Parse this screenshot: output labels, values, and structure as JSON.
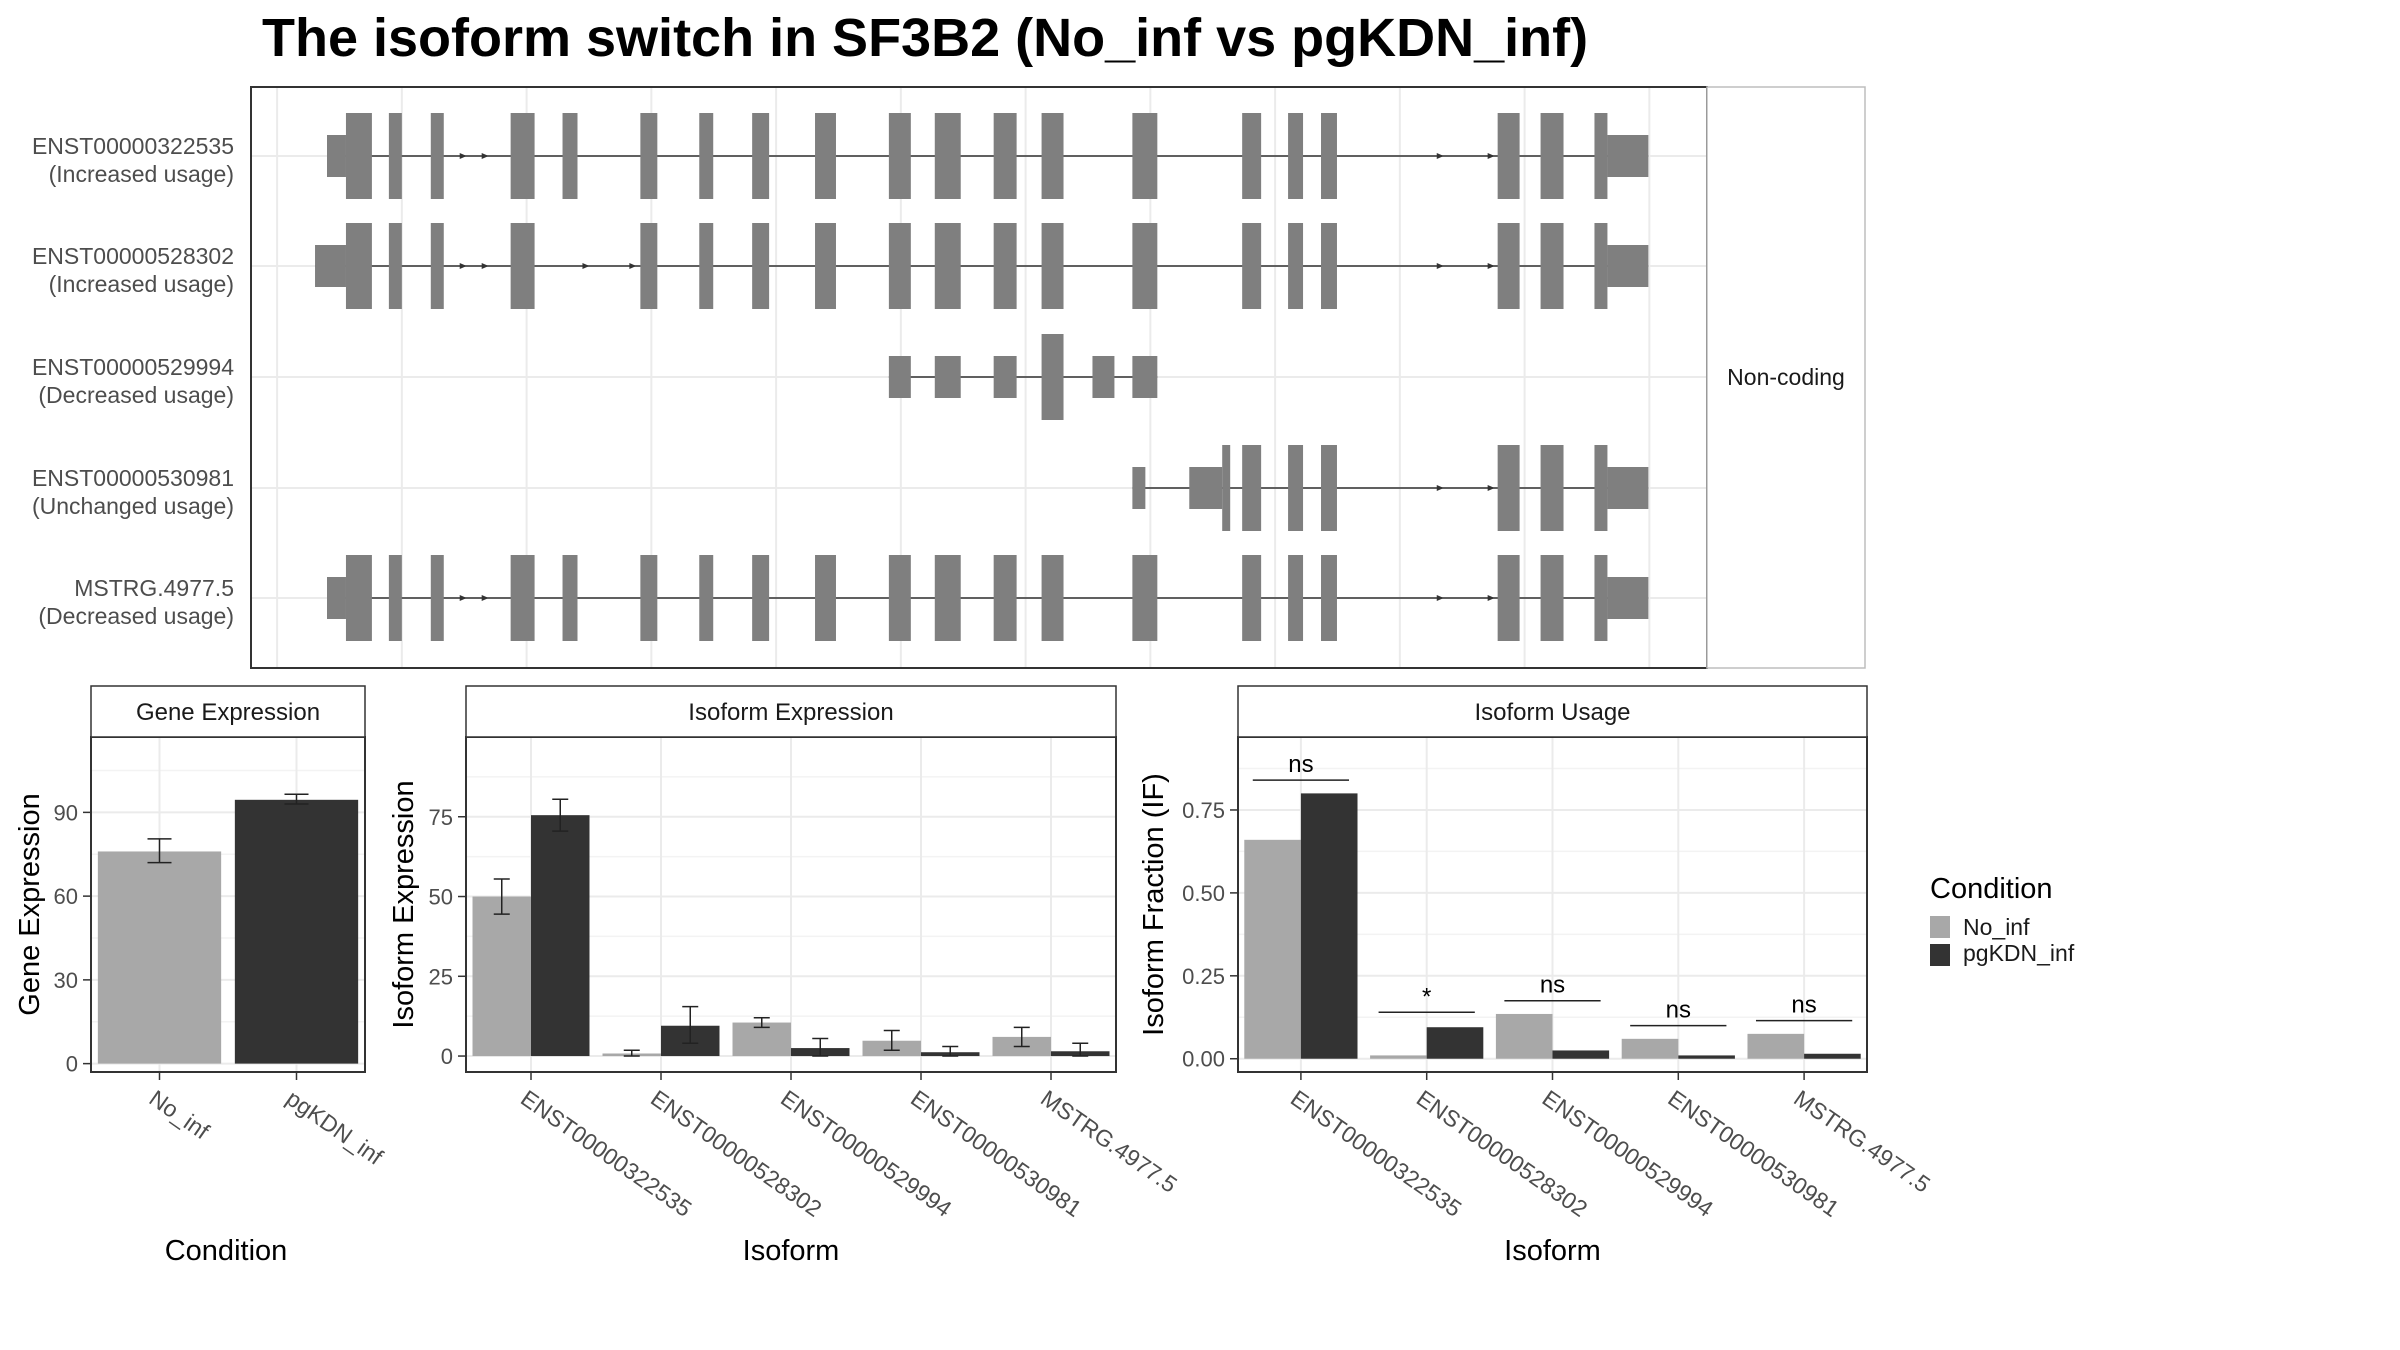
{
  "title": "The isoform switch in SF3B2 (No_inf vs pgKDN_inf)",
  "colors": {
    "no_inf": "#a8a8a8",
    "pgkdn_inf": "#333333",
    "exon": "#7f7f7f",
    "grid": "#ebebeb",
    "panel_border": "#333333",
    "strip_border": "#333333"
  },
  "legend": {
    "title": "Condition",
    "items": [
      {
        "label": "No_inf",
        "color": "#a8a8a8"
      },
      {
        "label": "pgKDN_inf",
        "color": "#333333"
      }
    ]
  },
  "structure": {
    "transcripts": [
      {
        "id": "ENST00000322535",
        "usage": "(Increased usage)",
        "utr5": [
          [
            0.0,
            1.9
          ]
        ],
        "exons": [
          [
            1.9,
            4.5
          ],
          [
            6.2,
            7.5
          ],
          [
            10.4,
            11.7
          ],
          [
            18.4,
            20.8
          ],
          [
            23.6,
            25.1
          ],
          [
            31.4,
            33.1
          ],
          [
            37.3,
            38.7
          ],
          [
            42.6,
            44.3
          ],
          [
            48.9,
            51.0
          ],
          [
            56.3,
            58.5
          ],
          [
            60.9,
            63.5
          ],
          [
            66.8,
            69.1
          ],
          [
            71.6,
            73.8
          ],
          [
            80.7,
            83.2
          ],
          [
            91.7,
            93.6
          ],
          [
            96.3,
            97.8
          ],
          [
            99.6,
            101.2
          ],
          [
            117.3,
            119.5
          ],
          [
            121.6,
            123.9
          ],
          [
            127.0,
            128.3
          ]
        ],
        "utr3": [
          [
            128.3,
            132.4
          ]
        ],
        "arrows": [
          14.0,
          16.2,
          111.9,
          117.0
        ]
      },
      {
        "id": "ENST00000528302",
        "usage": "(Increased usage)",
        "utr5": [
          [
            -1.2,
            1.9
          ]
        ],
        "exons": [
          [
            1.9,
            4.5
          ],
          [
            6.2,
            7.5
          ],
          [
            10.4,
            11.7
          ],
          [
            18.4,
            20.8
          ],
          [
            31.4,
            33.1
          ],
          [
            37.3,
            38.7
          ],
          [
            42.6,
            44.3
          ],
          [
            48.9,
            51.0
          ],
          [
            56.3,
            58.5
          ],
          [
            60.9,
            63.5
          ],
          [
            66.8,
            69.1
          ],
          [
            71.6,
            73.8
          ],
          [
            80.7,
            83.2
          ],
          [
            91.7,
            93.6
          ],
          [
            96.3,
            97.8
          ],
          [
            99.6,
            101.2
          ],
          [
            117.3,
            119.5
          ],
          [
            121.6,
            123.9
          ],
          [
            127.0,
            128.3
          ]
        ],
        "utr3": [
          [
            128.3,
            132.4
          ]
        ],
        "arrows": [
          14.0,
          16.2,
          26.3,
          31.0,
          111.9,
          117.0
        ]
      },
      {
        "id": "ENST00000529994",
        "usage": "(Decreased usage)",
        "utr5": [
          [
            56.3,
            58.5
          ],
          [
            60.9,
            63.5
          ],
          [
            66.8,
            69.1
          ]
        ],
        "exons": [
          [
            71.6,
            73.8
          ]
        ],
        "utr3": [
          [
            76.7,
            78.9
          ],
          [
            80.7,
            83.2
          ]
        ],
        "arrows": []
      },
      {
        "id": "ENST00000530981",
        "usage": "(Unchanged usage)",
        "utr5": [
          [
            80.7,
            82.0
          ]
        ],
        "exons": [
          [
            89.7,
            90.5
          ],
          [
            91.7,
            93.6
          ],
          [
            96.3,
            97.8
          ],
          [
            99.6,
            101.2
          ],
          [
            117.3,
            119.5
          ],
          [
            121.6,
            123.9
          ],
          [
            127.0,
            128.3
          ]
        ],
        "utr3": [
          [
            86.4,
            89.7
          ],
          [
            128.3,
            132.4
          ]
        ],
        "arrows": [
          111.9,
          117.0
        ]
      },
      {
        "id": "MSTRG.4977.5",
        "usage": "(Decreased usage)",
        "utr5": [
          [
            0.0,
            1.9
          ]
        ],
        "exons": [
          [
            1.9,
            4.5
          ],
          [
            6.2,
            7.5
          ],
          [
            10.4,
            11.7
          ],
          [
            18.4,
            20.8
          ],
          [
            23.6,
            25.1
          ],
          [
            31.4,
            33.1
          ],
          [
            37.3,
            38.7
          ],
          [
            42.6,
            44.3
          ],
          [
            48.9,
            51.0
          ],
          [
            56.3,
            58.5
          ],
          [
            60.9,
            63.5
          ],
          [
            66.8,
            69.1
          ],
          [
            71.6,
            73.8
          ],
          [
            80.7,
            83.2
          ],
          [
            91.7,
            93.6
          ],
          [
            96.3,
            97.8
          ],
          [
            99.6,
            101.2
          ],
          [
            117.3,
            119.5
          ],
          [
            121.6,
            123.9
          ],
          [
            127.0,
            128.3
          ]
        ],
        "utr3": [
          [
            128.3,
            132.4
          ]
        ],
        "arrows": [
          14.0,
          16.2,
          111.9,
          117.0
        ]
      }
    ],
    "side_label": "Non-coding"
  },
  "chart_data": [
    {
      "type": "bar",
      "title": "Gene Expression",
      "xlabel": "Condition",
      "ylabel": "Gene Expression",
      "categories": [
        "No_inf",
        "pgKDN_inf"
      ],
      "values": [
        76,
        94.5
      ],
      "errors": [
        [
          72,
          80.5
        ],
        [
          93,
          96.5
        ]
      ],
      "ylim": [
        -3,
        117
      ],
      "yticks": [
        0,
        30,
        60,
        90
      ],
      "ytick_labels": [
        "0",
        "30",
        "60",
        "90"
      ],
      "grid": true
    },
    {
      "type": "bar",
      "title": "Isoform Expression",
      "xlabel": "Isoform",
      "ylabel": "Isoform Expression",
      "categories": [
        "ENST00000322535",
        "ENST00000528302",
        "ENST00000529994",
        "ENST00000530981",
        "MSTRG.4977.5"
      ],
      "series": [
        {
          "name": "No_inf",
          "values": [
            50,
            0.8,
            10.5,
            4.8,
            6
          ],
          "errors": [
            [
              44.5,
              55.5
            ],
            [
              0,
              1.8
            ],
            [
              9,
              12
            ],
            [
              1.8,
              8
            ],
            [
              3,
              9
            ]
          ]
        },
        {
          "name": "pgKDN_inf",
          "values": [
            75.5,
            9.5,
            2.5,
            1.2,
            1.5
          ],
          "errors": [
            [
              70.5,
              80.5
            ],
            [
              4,
              15.5
            ],
            [
              0,
              5.5
            ],
            [
              0,
              3
            ],
            [
              0,
              4
            ]
          ]
        }
      ],
      "ylim": [
        -5,
        100
      ],
      "yticks": [
        0,
        25,
        50,
        75
      ],
      "ytick_labels": [
        "0",
        "25",
        "50",
        "75"
      ],
      "grid": true
    },
    {
      "type": "bar",
      "title": "Isoform Usage",
      "xlabel": "Isoform",
      "ylabel": "Isoform Fraction (IF)",
      "categories": [
        "ENST00000322535",
        "ENST00000528302",
        "ENST00000529994",
        "ENST00000530981",
        "MSTRG.4977.5"
      ],
      "series": [
        {
          "name": "No_inf",
          "values": [
            0.66,
            0.01,
            0.135,
            0.06,
            0.075
          ]
        },
        {
          "name": "pgKDN_inf",
          "values": [
            0.8,
            0.095,
            0.025,
            0.01,
            0.015
          ]
        }
      ],
      "significance": [
        "ns",
        "*",
        "ns",
        "ns",
        "ns"
      ],
      "sig_y": [
        0.84,
        0.14,
        0.175,
        0.1,
        0.115
      ],
      "ylim": [
        -0.04,
        0.97
      ],
      "yticks": [
        0.0,
        0.25,
        0.5,
        0.75
      ],
      "ytick_labels": [
        "0.00",
        "0.25",
        "0.50",
        "0.75"
      ],
      "grid": true
    }
  ]
}
